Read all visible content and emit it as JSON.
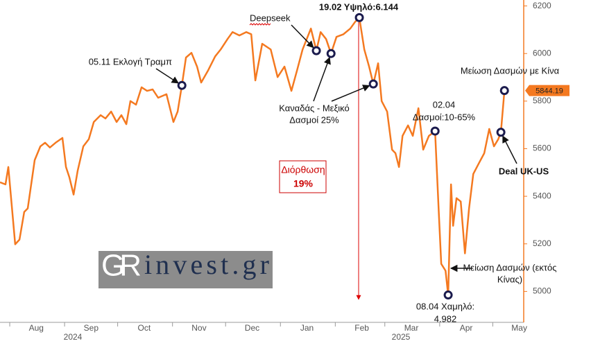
{
  "chart_data": {
    "type": "line",
    "color": "#f47920",
    "x": [
      -5.5,
      -2.4,
      -0.8,
      3.1,
      5.5,
      8.2,
      10.2,
      14.1,
      17.3,
      20,
      22.7,
      25.9,
      29.8,
      31.8,
      33.7,
      36.1,
      38.4,
      41.6,
      44.7,
      47.5,
      51.4,
      54.1,
      57.3,
      60.4,
      63.1,
      65.9,
      68.2,
      71.4,
      74.5,
      77.6,
      80.8,
      83.9,
      88.6,
      92.5,
      94.9,
      97.3,
      99.6,
      102.7,
      105.9,
      108.2,
      112.2,
      116.1,
      119.2,
      123.1,
      125.9,
      129.8,
      133.7,
      136.5,
      138.8,
      142.7,
      147.5,
      151.4,
      155.3,
      159.2,
      162.4,
      165.5,
      170.2,
      173.3,
      175.7,
      178.8,
      181.6,
      184.7,
      188.6,
      192.5,
      195.3,
      197.6,
      200.4,
      203.1,
      205.5,
      208.2,
      210.2,
      213.3,
      216.1,
      218,
      220,
      222,
      225.1,
      227.8,
      231,
      233.7,
      236.9,
      240.4,
      242.4,
      243.9,
      246.3,
      247.8,
      249.4,
      250.6,
      252.5,
      254.9,
      257.3,
      259.6,
      262,
      265.1,
      268.2,
      271,
      273.7,
      276.1,
      277.6,
      279.6
    ],
    "values": [
      5459,
      5450,
      5523,
      5198,
      5218,
      5334,
      5349,
      5552,
      5610,
      5625,
      5605,
      5625,
      5645,
      5523,
      5480,
      5407,
      5508,
      5610,
      5640,
      5712,
      5741,
      5727,
      5756,
      5712,
      5741,
      5703,
      5800,
      5785,
      5858,
      5843,
      5849,
      5814,
      5829,
      5712,
      5756,
      5866,
      5983,
      6003,
      5945,
      5878,
      5930,
      5988,
      6017,
      6061,
      6090,
      6076,
      6090,
      6081,
      5887,
      6041,
      6017,
      5901,
      5945,
      5843,
      5930,
      6017,
      6105,
      6012,
      6090,
      6061,
      6000,
      6070,
      6081,
      6105,
      6134,
      6151,
      6017,
      5945,
      5872,
      5959,
      5800,
      5756,
      5596,
      5581,
      5523,
      5654,
      5698,
      5654,
      5770,
      5596,
      5654,
      5674,
      5349,
      5116,
      5087,
      4985,
      5450,
      5276,
      5392,
      5378,
      5160,
      5349,
      5494,
      5538,
      5581,
      5683,
      5610,
      5640,
      5669,
      5844.19
    ],
    "xlim": [
      -5.5,
      290.5
    ],
    "xticks": [
      {
        "value": 0,
        "label": "Aug"
      },
      {
        "value": 31,
        "label": "Sep"
      },
      {
        "value": 61,
        "label": "Oct"
      },
      {
        "value": 92,
        "label": "Nov"
      },
      {
        "value": 122,
        "label": "Dec"
      },
      {
        "value": 153,
        "label": "Jan"
      },
      {
        "value": 184,
        "label": "Feb"
      },
      {
        "value": 212,
        "label": "Mar"
      },
      {
        "value": 243,
        "label": "Apr"
      },
      {
        "value": 273,
        "label": "May"
      }
    ],
    "year_labels": [
      "2024",
      "2025"
    ],
    "ylim": [
      4870,
      6225
    ],
    "yticks": [
      5000,
      5200,
      5400,
      5600,
      5800,
      6000,
      6200
    ],
    "annotations": [
      {
        "lines": [
          "05.11 Εκλογή Τραμπ"
        ],
        "points": [
          [
            97.3,
            5866
          ]
        ]
      },
      {
        "lines": [
          "Deepseek"
        ],
        "points": [
          [
            173.3,
            6012
          ]
        ]
      },
      {
        "lines": [
          "19.02 Υψηλό:6.144"
        ],
        "points": [
          [
            197.6,
            6151
          ]
        ]
      },
      {
        "lines": [
          "Καναδάς - Μεξικό",
          "Δασμοί 25%"
        ],
        "points": [
          [
            181.6,
            6000
          ],
          [
            205.5,
            5872
          ]
        ]
      },
      {
        "lines": [
          "02.04",
          "Δασμοί:10-65%"
        ],
        "points": [
          [
            240.4,
            5674
          ]
        ]
      },
      {
        "lines": [
          "08.04 Χαμηλό:",
          "4.982"
        ],
        "points": [
          [
            247.8,
            4985
          ]
        ]
      },
      {
        "lines": [
          "Μείωση Δασμών (εκτός",
          "Κίνας)"
        ]
      },
      {
        "lines": [
          "Deal UK-US"
        ],
        "points": [
          [
            277.6,
            5669
          ]
        ]
      },
      {
        "lines": [
          "Μείωση Δασμών με Κίνα"
        ],
        "points": [
          [
            279.6,
            5844.19
          ]
        ]
      }
    ],
    "correction": [
      "Διόρθωση",
      "19%"
    ],
    "watermark": [
      "GR",
      "invest.gr"
    ]
  }
}
